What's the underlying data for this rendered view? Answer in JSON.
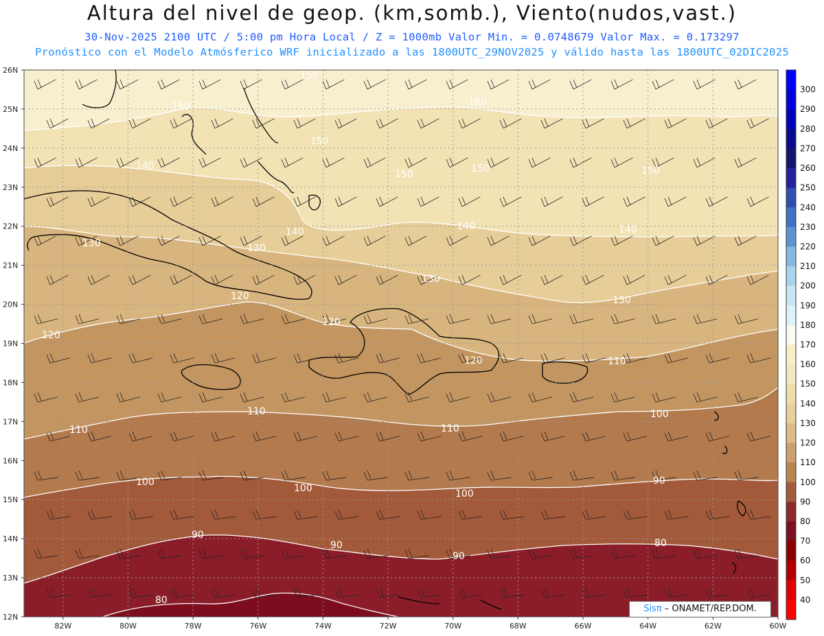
{
  "header": {
    "title": "Altura del nivel de geop. (km,somb.), Viento(nudos,vast.)",
    "line1": "30-Nov-2025  2100 UTC / 5:00 pm Hora Local / Z = 1000mb  Valor Min. = 0.0748679   Valor Max. = 0.173297",
    "line2": "Pronóstico con el Modelo Atmósferico WRF inicializado a las 1800UTC_29NOV2025 y válido hasta las  1800UTC_02DIC2025"
  },
  "axes": {
    "lat_labels": [
      "26N",
      "25N",
      "24N",
      "23N",
      "22N",
      "21N",
      "20N",
      "19N",
      "18N",
      "17N",
      "16N",
      "15N",
      "14N",
      "13N",
      "12N"
    ],
    "lon_labels": [
      "82W",
      "80W",
      "78W",
      "76W",
      "74W",
      "72W",
      "70W",
      "68W",
      "66W",
      "64W",
      "62W",
      "60W"
    ]
  },
  "colorbar": {
    "labels": [
      "300",
      "290",
      "280",
      "270",
      "260",
      "250",
      "240",
      "230",
      "220",
      "210",
      "200",
      "190",
      "180",
      "170",
      "160",
      "150",
      "140",
      "130",
      "120",
      "110",
      "100",
      "90",
      "80",
      "70",
      "60",
      "50",
      "40"
    ],
    "colors": [
      "#0000ff",
      "#0000dd",
      "#0000b8",
      "#0a0a8c",
      "#14146e",
      "#22229a",
      "#2f4fb0",
      "#3f72c2",
      "#5c94d0",
      "#86b9e0",
      "#a8d4ec",
      "#c6e6f4",
      "#ddf2f8",
      "#fafaf0",
      "#f7efc6",
      "#f5e8c0",
      "#efdcad",
      "#e8cf9c",
      "#ddbd85",
      "#cca06c",
      "#b88450",
      "#a05c3c",
      "#8c2a2c",
      "#7a1020",
      "#8a0000",
      "#b00000",
      "#e00000",
      "#ff0000"
    ]
  },
  "bands": {
    "colors": [
      "#f8efcf",
      "#f2e2b4",
      "#e7cd98",
      "#d8b57e",
      "#c39560",
      "#b37a4d",
      "#a35a3a",
      "#8b1d28",
      "#7c0c1e"
    ]
  },
  "contour_labels": [
    {
      "text": "150"
    },
    {
      "text": "150"
    },
    {
      "text": "150"
    },
    {
      "text": "150"
    },
    {
      "text": "150"
    },
    {
      "text": "160"
    },
    {
      "text": "150"
    },
    {
      "text": "140"
    },
    {
      "text": "140"
    },
    {
      "text": "140"
    },
    {
      "text": "140"
    },
    {
      "text": "130"
    },
    {
      "text": "130"
    },
    {
      "text": "130"
    },
    {
      "text": "130"
    },
    {
      "text": "120"
    },
    {
      "text": "120"
    },
    {
      "text": "120"
    },
    {
      "text": "120"
    },
    {
      "text": "110"
    },
    {
      "text": "110"
    },
    {
      "text": "110"
    },
    {
      "text": "110"
    },
    {
      "text": "100"
    },
    {
      "text": "100"
    },
    {
      "text": "100"
    },
    {
      "text": "100"
    },
    {
      "text": "90"
    },
    {
      "text": "90"
    },
    {
      "text": "90"
    },
    {
      "text": "90"
    },
    {
      "text": "80"
    },
    {
      "text": "80"
    }
  ],
  "credit": {
    "brand": "Sisπ",
    "rest": " – ONAMET/REP.DOM."
  }
}
